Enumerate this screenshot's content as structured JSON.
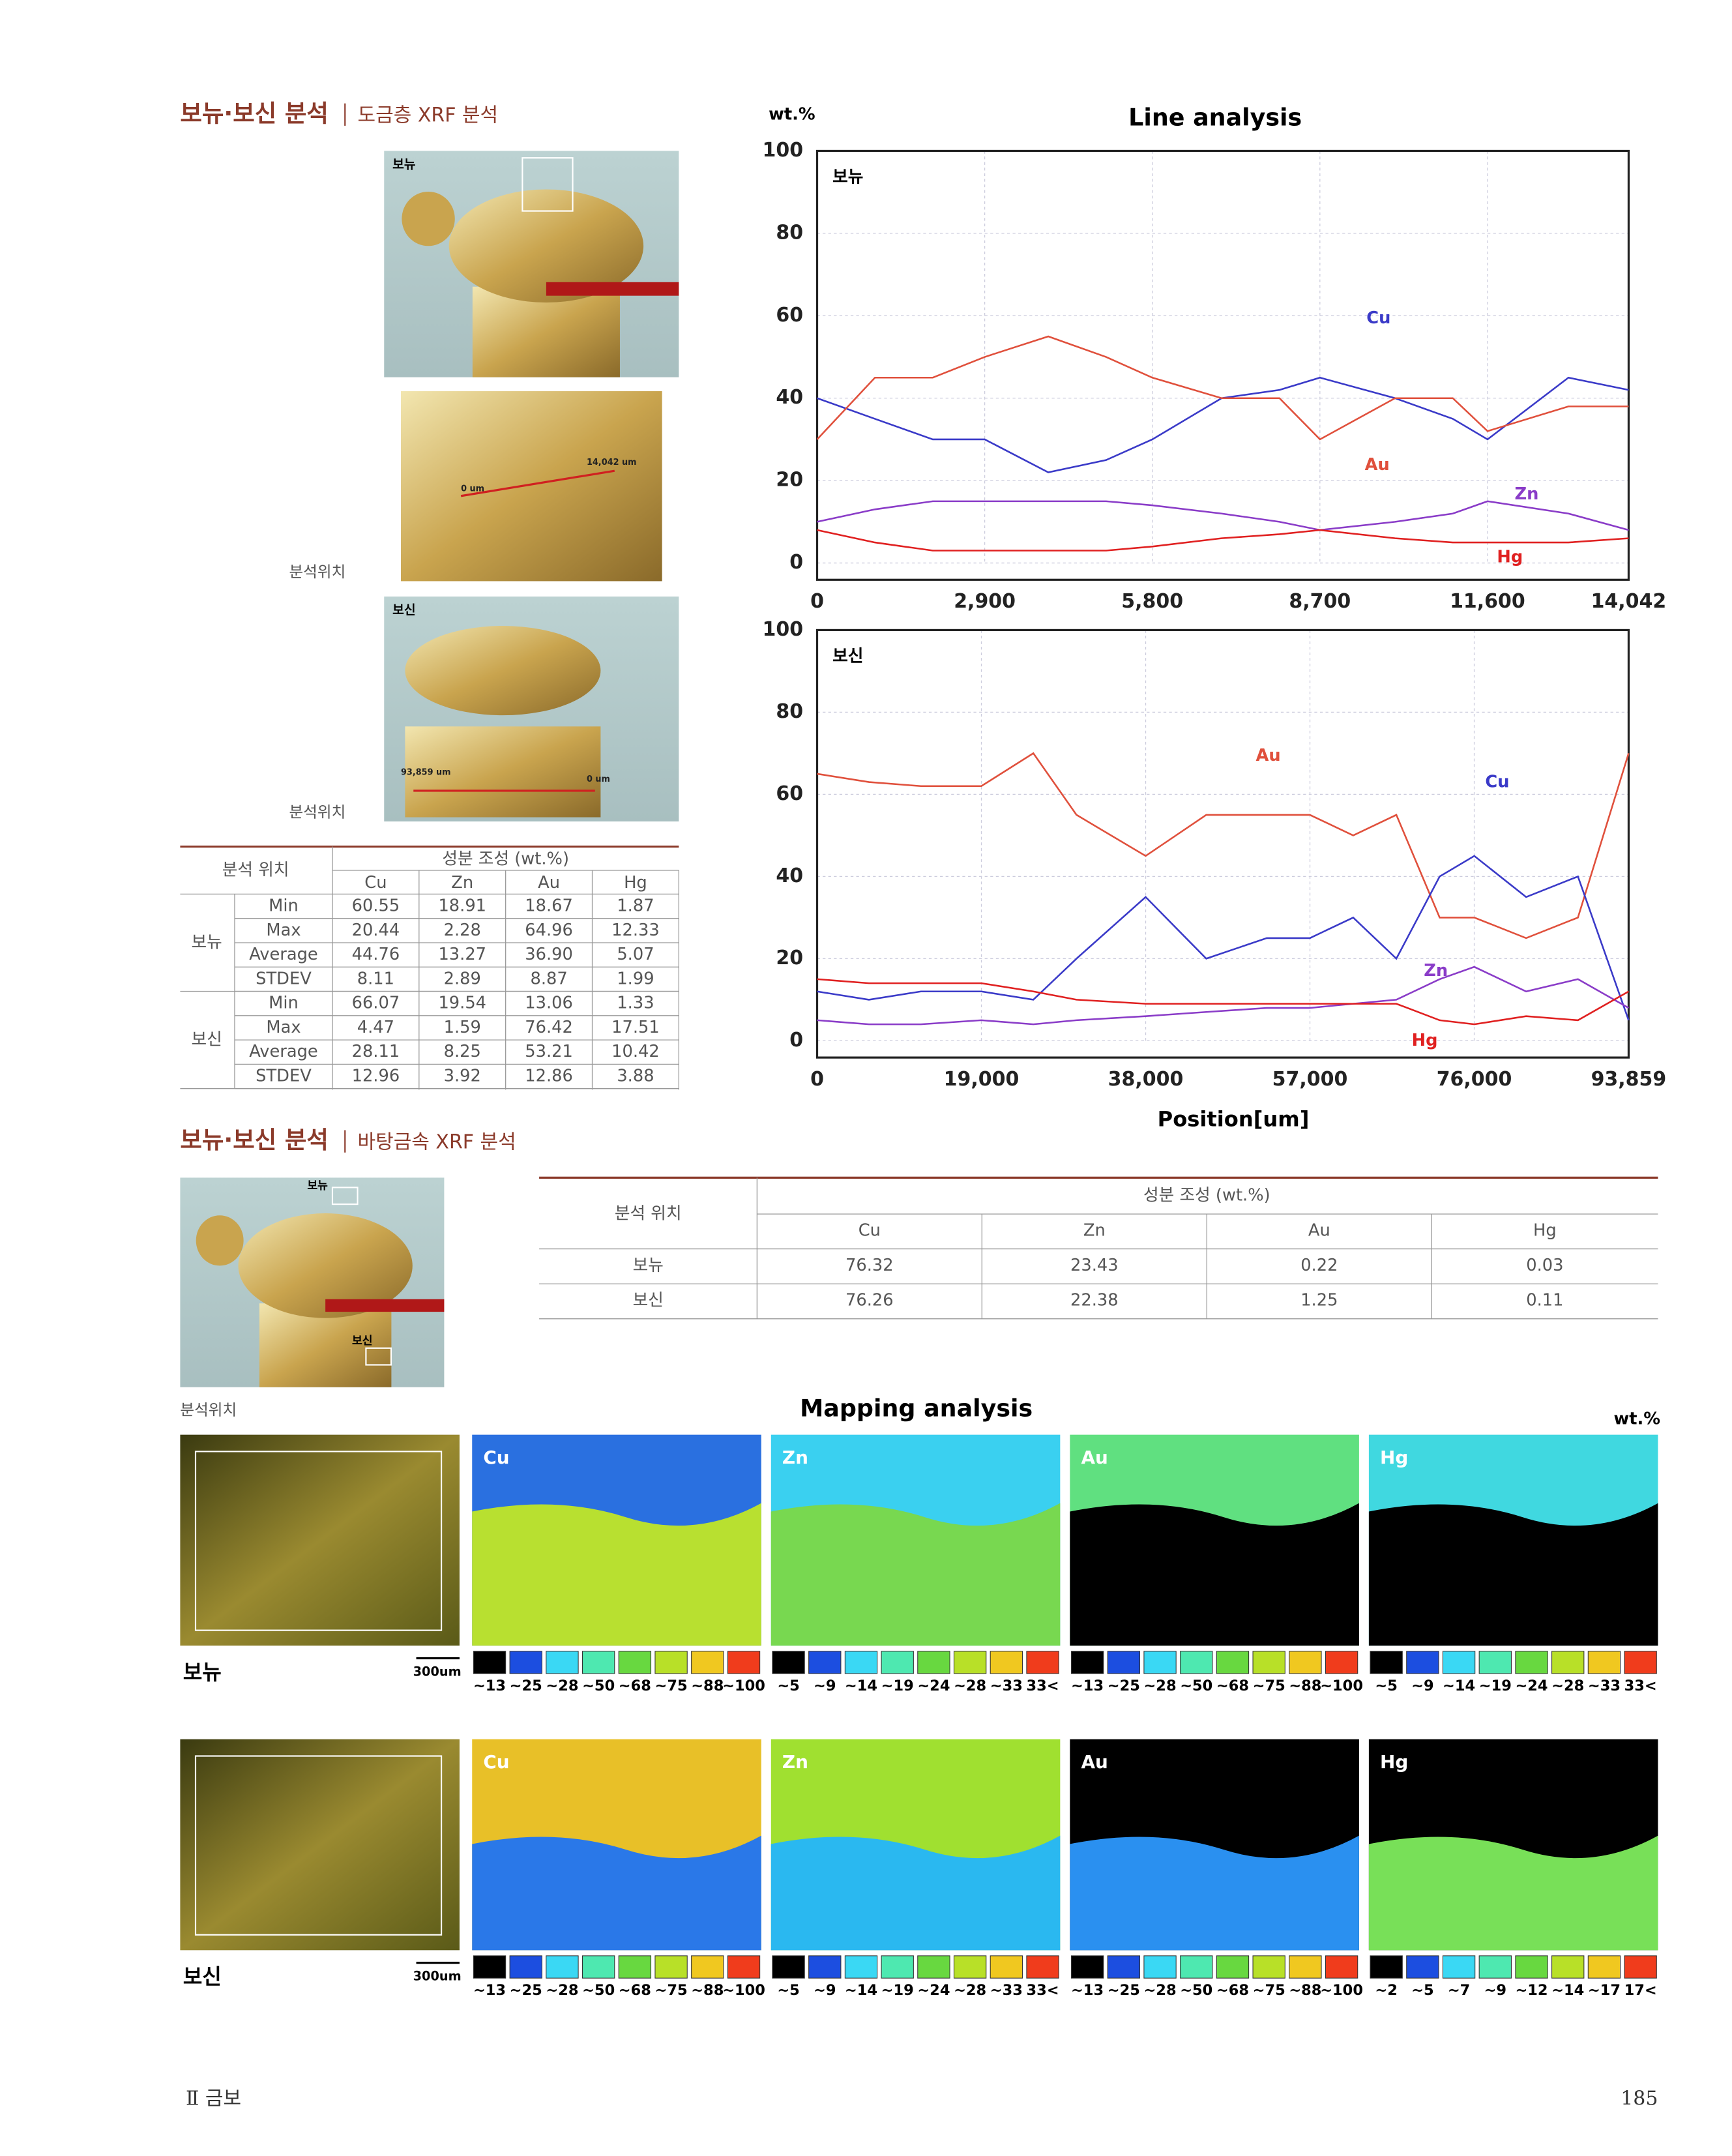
{
  "header": {
    "title": "보뉴·보신 분석",
    "subtitle": "도금층 XRF 분석"
  },
  "photos": {
    "bonyu_label": "보뉴",
    "bosin_label": "보신",
    "line1_end": "14,042 um",
    "line1_start": "0 um",
    "line2_end": "93,859 um",
    "line2_start": "0 um",
    "caption_1": "분석위치",
    "caption_2": "분석위치"
  },
  "table1": {
    "position_header": "분석 위치",
    "composition_header": "성분 조성 (wt.%)",
    "columns": [
      "Cu",
      "Zn",
      "Au",
      "Hg"
    ],
    "groups": [
      {
        "name": "보뉴",
        "rows": [
          [
            "Min",
            "60.55",
            "18.91",
            "18.67",
            "1.87"
          ],
          [
            "Max",
            "20.44",
            "2.28",
            "64.96",
            "12.33"
          ],
          [
            "Average",
            "44.76",
            "13.27",
            "36.90",
            "5.07"
          ],
          [
            "STDEV",
            "8.11",
            "2.89",
            "8.87",
            "1.99"
          ]
        ]
      },
      {
        "name": "보신",
        "rows": [
          [
            "Min",
            "66.07",
            "19.54",
            "13.06",
            "1.33"
          ],
          [
            "Max",
            "4.47",
            "1.59",
            "76.42",
            "17.51"
          ],
          [
            "Average",
            "28.11",
            "8.25",
            "53.21",
            "10.42"
          ],
          [
            "STDEV",
            "12.96",
            "3.92",
            "12.86",
            "3.88"
          ]
        ]
      }
    ]
  },
  "chart_data": [
    {
      "type": "line",
      "title": "Line analysis",
      "y_label": "wt.%",
      "annotation": "보뉴",
      "x": [
        0,
        1000,
        2000,
        2900,
        4000,
        5000,
        5800,
        7000,
        8000,
        8700,
        10000,
        11000,
        11600,
        13000,
        14042
      ],
      "xlim": [
        0,
        14042
      ],
      "xticks": [
        0,
        {
          "value": 2900,
          "label": "2,900"
        },
        {
          "value": 5800,
          "label": "5,800"
        },
        {
          "value": 8700,
          "label": "8,700"
        },
        {
          "value": 11600,
          "label": "11,600"
        },
        {
          "value": 14042,
          "label": "14,042"
        }
      ],
      "ylim": [
        0,
        100
      ],
      "yticks": [
        0,
        20,
        40,
        60,
        80,
        100
      ],
      "grid": true,
      "series": [
        {
          "name": "Cu",
          "color": "#3a3ac8",
          "values": [
            40,
            35,
            30,
            30,
            22,
            25,
            30,
            40,
            42,
            45,
            40,
            35,
            30,
            45,
            42
          ]
        },
        {
          "name": "Au",
          "color": "#e0503c",
          "values": [
            30,
            45,
            45,
            50,
            55,
            50,
            45,
            40,
            40,
            30,
            40,
            40,
            32,
            38,
            38
          ]
        },
        {
          "name": "Zn",
          "color": "#8a3cc8",
          "values": [
            10,
            13,
            15,
            15,
            15,
            15,
            14,
            12,
            10,
            8,
            10,
            12,
            15,
            12,
            8
          ]
        },
        {
          "name": "Hg",
          "color": "#e02020",
          "values": [
            8,
            5,
            3,
            3,
            3,
            3,
            4,
            6,
            7,
            8,
            6,
            5,
            5,
            5,
            6
          ]
        }
      ]
    },
    {
      "type": "line",
      "annotation": "보신",
      "x_label": "Position[um]",
      "x": [
        0,
        6000,
        12000,
        19000,
        25000,
        30000,
        38000,
        45000,
        52000,
        57000,
        62000,
        67000,
        72000,
        76000,
        82000,
        88000,
        93859
      ],
      "xlim": [
        0,
        93859
      ],
      "xticks": [
        0,
        {
          "value": 19000,
          "label": "19,000"
        },
        {
          "value": 38000,
          "label": "38,000"
        },
        {
          "value": 57000,
          "label": "57,000"
        },
        {
          "value": 76000,
          "label": "76,000"
        },
        {
          "value": 93859,
          "label": "93,859"
        }
      ],
      "ylim": [
        0,
        100
      ],
      "yticks": [
        0,
        20,
        40,
        60,
        80,
        100
      ],
      "grid": true,
      "series": [
        {
          "name": "Au",
          "color": "#e0503c",
          "values": [
            65,
            63,
            62,
            62,
            70,
            55,
            45,
            55,
            55,
            55,
            50,
            55,
            30,
            30,
            25,
            30,
            70
          ]
        },
        {
          "name": "Cu",
          "color": "#3a3ac8",
          "values": [
            12,
            10,
            12,
            12,
            10,
            20,
            35,
            20,
            25,
            25,
            30,
            20,
            40,
            45,
            35,
            40,
            5
          ]
        },
        {
          "name": "Zn",
          "color": "#8a3cc8",
          "values": [
            5,
            4,
            4,
            5,
            4,
            5,
            6,
            7,
            8,
            8,
            9,
            10,
            15,
            18,
            12,
            15,
            8
          ]
        },
        {
          "name": "Hg",
          "color": "#e02020",
          "values": [
            15,
            14,
            14,
            14,
            12,
            10,
            9,
            9,
            9,
            9,
            9,
            9,
            5,
            4,
            6,
            5,
            12
          ]
        }
      ]
    }
  ],
  "section2": {
    "title": "보뉴·보신 분석",
    "subtitle": "바탕금속 XRF 분석",
    "photo_bonyu": "보뉴",
    "photo_bosin": "보신",
    "caption": "분석위치"
  },
  "table2": {
    "position_header": "분석 위치",
    "composition_header": "성분 조성 (wt.%)",
    "columns": [
      "Cu",
      "Zn",
      "Au",
      "Hg"
    ],
    "rows": [
      [
        "보뉴",
        "76.32",
        "23.43",
        "0.22",
        "0.03"
      ],
      [
        "보신",
        "76.26",
        "22.38",
        "1.25",
        "0.11"
      ]
    ]
  },
  "mapping": {
    "title": "Mapping analysis",
    "unit": "wt.%",
    "rows": [
      {
        "label": "보뉴",
        "scale_bar": "300um",
        "maps": [
          {
            "element": "Cu",
            "legend": [
              "~13",
              "~25",
              "~28",
              "~50",
              "~68",
              "~75",
              "~88",
              "~100"
            ]
          },
          {
            "element": "Zn",
            "legend": [
              "~5",
              "~9",
              "~14",
              "~19",
              "~24",
              "~28",
              "~33",
              "33<"
            ]
          },
          {
            "element": "Au",
            "legend": [
              "~13",
              "~25",
              "~28",
              "~50",
              "~68",
              "~75",
              "~88",
              "~100"
            ]
          },
          {
            "element": "Hg",
            "legend": [
              "~5",
              "~9",
              "~14",
              "~19",
              "~24",
              "~28",
              "~33",
              "33<"
            ]
          }
        ]
      },
      {
        "label": "보신",
        "scale_bar": "300um",
        "maps": [
          {
            "element": "Cu",
            "legend": [
              "~13",
              "~25",
              "~28",
              "~50",
              "~68",
              "~75",
              "~88",
              "~100"
            ]
          },
          {
            "element": "Zn",
            "legend": [
              "~5",
              "~9",
              "~14",
              "~19",
              "~24",
              "~28",
              "~33",
              "33<"
            ]
          },
          {
            "element": "Au",
            "legend": [
              "~13",
              "~25",
              "~28",
              "~50",
              "~68",
              "~75",
              "~88",
              "~100"
            ]
          },
          {
            "element": "Hg",
            "legend": [
              "~2",
              "~5",
              "~7",
              "~9",
              "~12",
              "~14",
              "~17",
              "17<"
            ]
          }
        ]
      }
    ]
  },
  "footer": {
    "chapter": "Ⅱ 금보",
    "page": "185"
  }
}
